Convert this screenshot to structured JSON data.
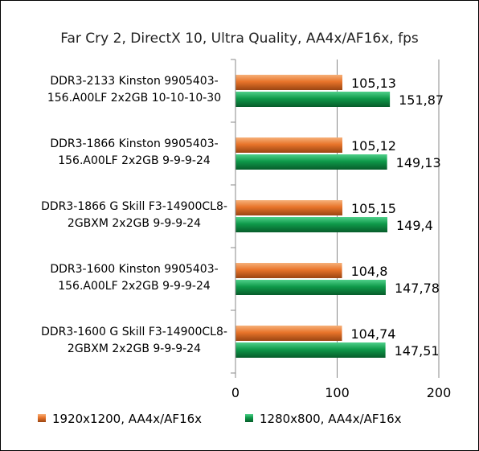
{
  "chart_data": {
    "type": "bar",
    "orientation": "horizontal",
    "title": "Far Cry 2, DirectX 10, Ultra Quality, AA4x/AF16x, fps",
    "categories": [
      [
        "DDR3-2133 Kinston 9905403-",
        "156.A00LF 2x2GB 10-10-10-30"
      ],
      [
        "DDR3-1866 Kinston 9905403-",
        "156.A00LF 2x2GB 9-9-9-24"
      ],
      [
        "DDR3-1866 G Skill F3-14900CL8-",
        "2GBXM 2x2GB 9-9-9-24"
      ],
      [
        "DDR3-1600 Kinston 9905403-",
        "156.A00LF 2x2GB 9-9-9-24"
      ],
      [
        "DDR3-1600 G Skill F3-14900CL8-",
        "2GBXM 2x2GB 9-9-9-24"
      ]
    ],
    "series": [
      {
        "name": "1920x1200, AA4x/AF16x",
        "color": "#e8742a",
        "values": [
          105.13,
          105.12,
          105.15,
          104.8,
          104.74
        ],
        "labels": [
          "105,13",
          "105,12",
          "105,15",
          "104,8",
          "104,74"
        ]
      },
      {
        "name": "1280x800, AA4x/AF16x",
        "color": "#0f9a4a",
        "values": [
          151.87,
          149.13,
          149.4,
          147.78,
          147.51
        ],
        "labels": [
          "151,87",
          "149,13",
          "149,4",
          "147,78",
          "147,51"
        ]
      }
    ],
    "xlim": [
      0,
      200
    ],
    "xticks": [
      0,
      100,
      200
    ],
    "grid": true,
    "legend": "bottom"
  }
}
